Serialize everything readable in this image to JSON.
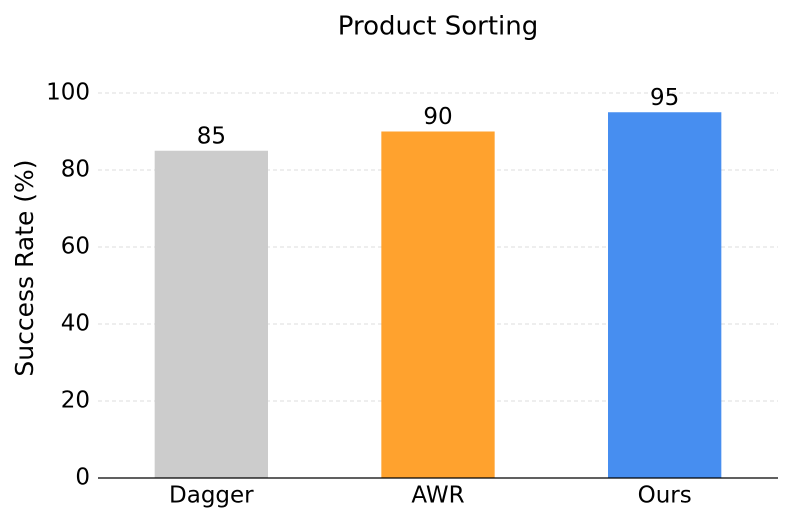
{
  "chart_data": {
    "type": "bar",
    "title": "Product Sorting",
    "y_label": "Success Rate (%)",
    "categories": [
      "Dagger",
      "AWR",
      "Ours"
    ],
    "values": [
      85,
      90,
      95
    ],
    "colors": [
      "#cccccc",
      "#ffa22e",
      "#478ef0"
    ],
    "ylim": [
      0,
      100
    ],
    "yticks": [
      0,
      20,
      40,
      60,
      80,
      100
    ],
    "grid": true
  }
}
